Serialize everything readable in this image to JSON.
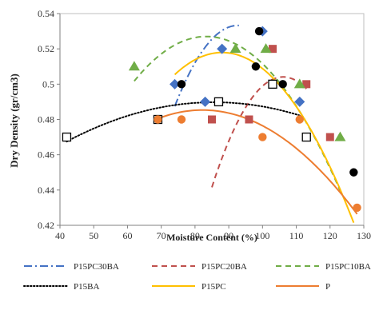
{
  "chart_data": {
    "type": "scatter",
    "xlabel": "Moisture Content (%)",
    "ylabel": "Dry Density (gr/cm3)",
    "xlim": [
      40,
      130
    ],
    "ylim": [
      0.42,
      0.54
    ],
    "xticks": [
      40,
      50,
      60,
      70,
      80,
      90,
      100,
      110,
      120,
      130
    ],
    "yticks": [
      0.42,
      0.44,
      0.46,
      0.48,
      0.5,
      0.52,
      0.54
    ],
    "xtick_labels": [
      "40",
      "50",
      "60",
      "70",
      "80",
      "90",
      "100",
      "110",
      "120",
      "130"
    ],
    "ytick_labels": [
      "0.42",
      "0.44",
      "0.46",
      "0.48",
      "0.5",
      "0.52",
      "0.54"
    ],
    "grid": false,
    "legend_position": "bottom",
    "series": [
      {
        "name": "P15PC30BA",
        "color": "#4472c4",
        "marker": "diamond",
        "line_style": "dash-dot",
        "points": [
          [
            74,
            0.5
          ],
          [
            88,
            0.52
          ],
          [
            100,
            0.53
          ],
          [
            83,
            0.49
          ],
          [
            111,
            0.49
          ]
        ],
        "fit": [
          -0.0001309,
          0.02427,
          -0.5917
        ],
        "fit_range": [
          74,
          93
        ]
      },
      {
        "name": "P15PC20BA",
        "color": "#c0504d",
        "marker": "square",
        "line_style": "dash",
        "points": [
          [
            113,
            0.5
          ],
          [
            103,
            0.52
          ],
          [
            85,
            0.48
          ],
          [
            96,
            0.48
          ],
          [
            120,
            0.47
          ]
        ],
        "fit": [
          -0.0001408,
          0.02987,
          -1.0801
        ],
        "fit_range": [
          85,
          113
        ]
      },
      {
        "name": "P15PC10BA",
        "color": "#70ad47",
        "marker": "triangle",
        "line_style": "dash",
        "points": [
          [
            62,
            0.51
          ],
          [
            92,
            0.52
          ],
          [
            101,
            0.52
          ],
          [
            111,
            0.5
          ],
          [
            123,
            0.47
          ]
        ],
        "fit": [
          -5.55e-05,
          0.00925,
          0.14158
        ],
        "fit_range": [
          62,
          123
        ]
      },
      {
        "name": "P15BA",
        "color": "#000000",
        "marker": "open-square",
        "line_style": "dot",
        "points": [
          [
            42,
            0.47
          ],
          [
            69,
            0.48
          ],
          [
            87,
            0.49
          ],
          [
            103,
            0.5
          ],
          [
            113,
            0.47
          ]
        ],
        "fit": [
          -1.167e-05,
          0.002,
          0.40405
        ],
        "fit_range": [
          42,
          112
        ]
      },
      {
        "name": "P15PC",
        "color": "#ffc000",
        "marker": "circle",
        "line_style": "solid",
        "points": [
          [
            76,
            0.5
          ],
          [
            98,
            0.51
          ],
          [
            99,
            0.53
          ],
          [
            106,
            0.5
          ],
          [
            127,
            0.45
          ]
        ],
        "fit": [
          -6.35e-05,
          0.01118,
          0.02583
        ],
        "fit_range": [
          74,
          127
        ]
      },
      {
        "name": "P",
        "color": "#ed7d31",
        "marker": "circle",
        "line_style": "solid",
        "points": [
          [
            69,
            0.48
          ],
          [
            76,
            0.48
          ],
          [
            100,
            0.47
          ],
          [
            111,
            0.48
          ],
          [
            128,
            0.43
          ]
        ],
        "fit": [
          -2.81e-05,
          0.00462,
          0.29543
        ],
        "fit_range": [
          68,
          128
        ]
      }
    ]
  }
}
